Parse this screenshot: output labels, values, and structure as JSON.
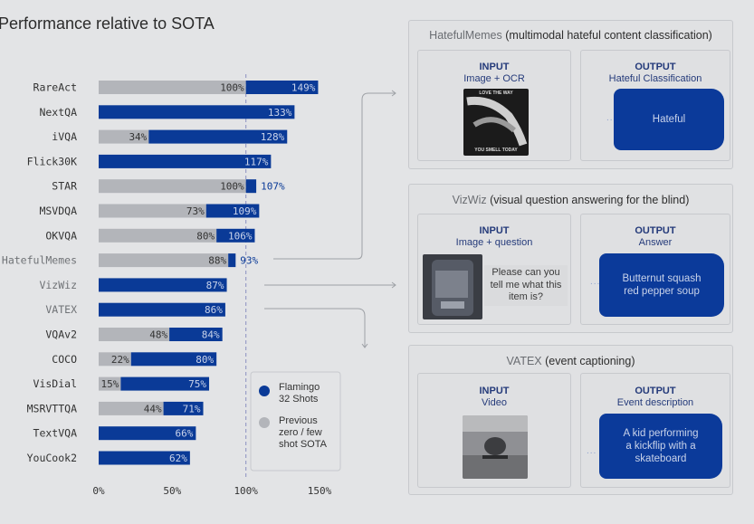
{
  "title": "Performance relative to SOTA",
  "chart_data": {
    "type": "bar",
    "title": "Performance relative to SOTA",
    "categories": [
      "RareAct",
      "NextQA",
      "iVQA",
      "Flick30K",
      "STAR",
      "MSVDQA",
      "OKVQA",
      "HatefulMemes",
      "VizWiz",
      "VATEX",
      "VQAv2",
      "COCO",
      "VisDial",
      "MSRVTTQA",
      "TextVQA",
      "YouCook2"
    ],
    "series": [
      {
        "name": "Flamingo 32 Shots",
        "values": [
          149,
          133,
          128,
          117,
          107,
          109,
          106,
          93,
          87,
          86,
          84,
          80,
          75,
          71,
          66,
          62
        ]
      },
      {
        "name": "Previous zero / few shot SOTA",
        "values": [
          100,
          null,
          34,
          null,
          100,
          73,
          80,
          88,
          null,
          null,
          48,
          22,
          15,
          44,
          null,
          null
        ]
      }
    ],
    "category_color": [
      "dark",
      "dark",
      "dark",
      "dark",
      "dark",
      "dark",
      "dark",
      "muted",
      "muted",
      "muted",
      "dark",
      "dark",
      "dark",
      "dark",
      "dark",
      "dark"
    ],
    "xticks": [
      "0%",
      "50%",
      "100%",
      "150%"
    ],
    "xlim": [
      0,
      160
    ],
    "reference_line": 100,
    "legend_placement": "bottom-right",
    "colors": {
      "flamingo": "#0a3a97",
      "sota": "#b3b5ba",
      "label_dark": "#333333",
      "label_muted": "#6f7276",
      "ref_line": "#8a8fc0"
    }
  },
  "legend": {
    "flamingo": "Flamingo\n32 Shots",
    "sota": "Previous\nzero / few\nshot SOTA"
  },
  "panels": [
    {
      "name": "HatefulMemes",
      "desc": "(multimodal hateful content classification)",
      "input_head": "INPUT",
      "input_sub": "Image + OCR",
      "output_head": "OUTPUT",
      "output_sub": "Hateful Classification",
      "output": "Hateful",
      "meme_top": "LOVE THE WAY",
      "meme_bottom": "YOU SMELL TODAY"
    },
    {
      "name": "VizWiz",
      "desc": "(visual question answering for the blind)",
      "input_head": "INPUT",
      "input_sub": "Image + question",
      "output_head": "OUTPUT",
      "output_sub": "Answer",
      "question": "Please can you tell me what this item is?",
      "output": "Butternut squash red pepper soup"
    },
    {
      "name": "VATEX",
      "desc": "(event captioning)",
      "input_head": "INPUT",
      "input_sub": "Video",
      "output_head": "OUTPUT",
      "output_sub": "Event description",
      "output": "A kid performing a kickflip with a skateboard"
    }
  ],
  "ellipsis": "..."
}
